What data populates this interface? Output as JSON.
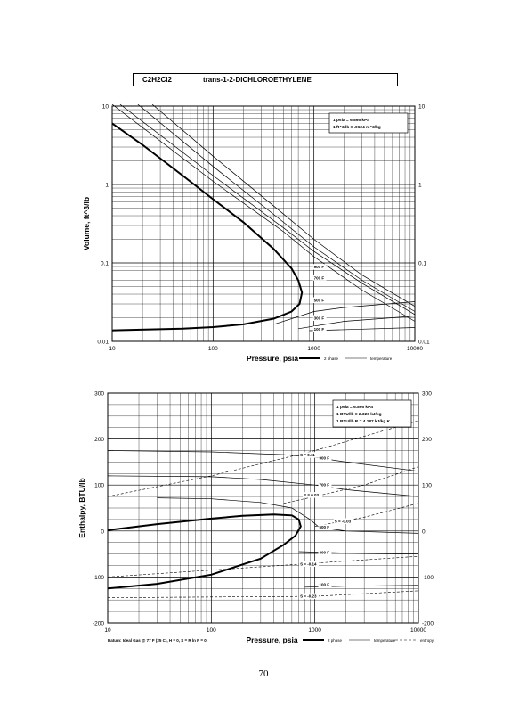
{
  "header": {
    "formula": "C2H2Cl2",
    "compound_name": "trans-1-2-DICHLOROETHYLENE"
  },
  "page_number": "70",
  "chart_data": [
    {
      "type": "line",
      "xscale": "log",
      "yscale": "log",
      "xlim": [
        10,
        10000
      ],
      "ylim": [
        0.01,
        10
      ],
      "xlabel": "Pressure,  psia",
      "ylabel": "Volume, ft^3/lb",
      "x_ticks": [
        "10",
        "100",
        "1000",
        "10000"
      ],
      "y_ticks": [
        "0.01",
        "0.1",
        "1",
        "10"
      ],
      "grid": true,
      "conversion_box": [
        "1 psia  =  6.895 kPa",
        "1 ft^3/lb  =  .0624 m^3/kg"
      ],
      "legend": {
        "placement": "bottom-right",
        "entries": [
          "2 phase",
          "temperature"
        ]
      },
      "isotherm_labels": [
        {
          "label": "900 F",
          "x": 1000,
          "y": 0.085
        },
        {
          "label": "700 F",
          "x": 1000,
          "y": 0.062
        },
        {
          "label": "500 F",
          "x": 1000,
          "y": 0.032
        },
        {
          "label": "300 F",
          "x": 1000,
          "y": 0.019
        },
        {
          "label": "100 F",
          "x": 1000,
          "y": 0.0137
        }
      ],
      "two_phase": [
        {
          "x": 10,
          "y": 6
        },
        {
          "x": 20,
          "y": 3.2
        },
        {
          "x": 50,
          "y": 1.3
        },
        {
          "x": 100,
          "y": 0.65
        },
        {
          "x": 200,
          "y": 0.33
        },
        {
          "x": 400,
          "y": 0.15
        },
        {
          "x": 600,
          "y": 0.085
        },
        {
          "x": 700,
          "y": 0.06
        },
        {
          "x": 760,
          "y": 0.042
        },
        {
          "x": 720,
          "y": 0.03
        },
        {
          "x": 600,
          "y": 0.024
        },
        {
          "x": 400,
          "y": 0.0195
        },
        {
          "x": 200,
          "y": 0.0165
        },
        {
          "x": 100,
          "y": 0.0152
        },
        {
          "x": 50,
          "y": 0.0145
        },
        {
          "x": 10,
          "y": 0.0138
        }
      ],
      "isotherms": [
        {
          "points": [
            {
              "x": 10,
              "y": 10.5
            },
            {
              "x": 100,
              "y": 1.1
            },
            {
              "x": 500,
              "y": 0.25
            },
            {
              "x": 1000,
              "y": 0.12
            },
            {
              "x": 3000,
              "y": 0.045
            },
            {
              "x": 10000,
              "y": 0.018
            }
          ]
        },
        {
          "points": [
            {
              "x": 12,
              "y": 10.5
            },
            {
              "x": 100,
              "y": 1.3
            },
            {
              "x": 500,
              "y": 0.28
            },
            {
              "x": 1000,
              "y": 0.14
            },
            {
              "x": 3000,
              "y": 0.055
            },
            {
              "x": 10000,
              "y": 0.022
            }
          ]
        },
        {
          "points": [
            {
              "x": 18,
              "y": 10.5
            },
            {
              "x": 100,
              "y": 1.7
            },
            {
              "x": 500,
              "y": 0.33
            },
            {
              "x": 1000,
              "y": 0.16
            },
            {
              "x": 3000,
              "y": 0.06
            },
            {
              "x": 10000,
              "y": 0.024
            }
          ]
        },
        {
          "points": [
            {
              "x": 25,
              "y": 10.5
            },
            {
              "x": 100,
              "y": 2.3
            },
            {
              "x": 500,
              "y": 0.42
            },
            {
              "x": 1000,
              "y": 0.2
            },
            {
              "x": 3000,
              "y": 0.07
            },
            {
              "x": 10000,
              "y": 0.028
            }
          ]
        },
        {
          "points": [
            {
              "x": 400,
              "y": 0.0165
            },
            {
              "x": 1000,
              "y": 0.024
            },
            {
              "x": 2000,
              "y": 0.027
            },
            {
              "x": 10000,
              "y": 0.032
            }
          ]
        },
        {
          "points": [
            {
              "x": 700,
              "y": 0.0145
            },
            {
              "x": 2000,
              "y": 0.018
            },
            {
              "x": 10000,
              "y": 0.021
            }
          ]
        },
        {
          "points": [
            {
              "x": 900,
              "y": 0.0137
            },
            {
              "x": 3000,
              "y": 0.0143
            },
            {
              "x": 10000,
              "y": 0.015
            }
          ]
        }
      ]
    },
    {
      "type": "line",
      "xscale": "log",
      "yscale": "linear",
      "xlim": [
        10,
        10000
      ],
      "ylim": [
        -200,
        300
      ],
      "xlabel": "Pressure,  psia",
      "ylabel": "Enthalpy, BTU/lb",
      "x_ticks": [
        "10",
        "100",
        "1000",
        "10000"
      ],
      "y_ticks": [
        "-200",
        "-100",
        "0",
        "100",
        "200",
        "300"
      ],
      "grid": true,
      "conversion_box": [
        "1 psia  =  6.895 kPa",
        "1 BTU/lb  =  2.326 kJ/kg",
        "1 BTU/lb R  =  4.187 kJ/kg K"
      ],
      "legend": {
        "placement": "bottom-right",
        "entries": [
          "2 phase",
          "temperature",
          "entropy"
        ]
      },
      "datum_note": "Datum: Ideal Gas @ 77 F (25 C),  H = 0,  S = R ln P = 0",
      "isotherm_labels": [
        {
          "label": "900 F",
          "x": 1100,
          "y": 156
        },
        {
          "label": "700 F",
          "x": 1100,
          "y": 97
        },
        {
          "label": "500 F",
          "x": 1100,
          "y": 5
        },
        {
          "label": "300 F",
          "x": 1100,
          "y": -50
        },
        {
          "label": "100 F",
          "x": 1100,
          "y": -120
        }
      ],
      "entropy_labels": [
        {
          "label": "S = 0.11",
          "x": 720,
          "y": 162
        },
        {
          "label": "S = 0.03",
          "x": 780,
          "y": 75
        },
        {
          "label": "S = -0.03",
          "x": 1550,
          "y": 18
        },
        {
          "label": "S = -0.14",
          "x": 720,
          "y": -75
        },
        {
          "label": "S = -0.23",
          "x": 720,
          "y": -145
        }
      ],
      "two_phase": [
        {
          "x": 10,
          "y": 2
        },
        {
          "x": 30,
          "y": 15
        },
        {
          "x": 100,
          "y": 27
        },
        {
          "x": 200,
          "y": 33
        },
        {
          "x": 400,
          "y": 36
        },
        {
          "x": 600,
          "y": 34
        },
        {
          "x": 700,
          "y": 25
        },
        {
          "x": 730,
          "y": 10
        },
        {
          "x": 650,
          "y": -10
        },
        {
          "x": 500,
          "y": -30
        },
        {
          "x": 300,
          "y": -60
        },
        {
          "x": 100,
          "y": -95
        },
        {
          "x": 30,
          "y": -115
        },
        {
          "x": 10,
          "y": -125
        }
      ],
      "isotherms": [
        {
          "points": [
            {
              "x": 10,
              "y": 175
            },
            {
              "x": 100,
              "y": 172
            },
            {
              "x": 500,
              "y": 166
            },
            {
              "x": 1000,
              "y": 160
            },
            {
              "x": 2000,
              "y": 150
            },
            {
              "x": 10000,
              "y": 130
            }
          ]
        },
        {
          "points": [
            {
              "x": 10,
              "y": 120
            },
            {
              "x": 100,
              "y": 118
            },
            {
              "x": 300,
              "y": 112
            },
            {
              "x": 1000,
              "y": 100
            },
            {
              "x": 2000,
              "y": 90
            },
            {
              "x": 10000,
              "y": 75
            }
          ]
        },
        {
          "points": [
            {
              "x": 30,
              "y": 72
            },
            {
              "x": 100,
              "y": 70
            },
            {
              "x": 300,
              "y": 62
            },
            {
              "x": 600,
              "y": 50
            },
            {
              "x": 900,
              "y": 25
            },
            {
              "x": 1100,
              "y": 8
            },
            {
              "x": 2000,
              "y": 0
            },
            {
              "x": 10000,
              "y": -5
            }
          ]
        },
        {
          "points": [
            {
              "x": 700,
              "y": -45
            },
            {
              "x": 2000,
              "y": -48
            },
            {
              "x": 10000,
              "y": -50
            }
          ]
        },
        {
          "points": [
            {
              "x": 800,
              "y": -122
            },
            {
              "x": 2000,
              "y": -120
            },
            {
              "x": 10000,
              "y": -118
            }
          ]
        }
      ],
      "entropy_lines": [
        {
          "points": [
            {
              "x": 10,
              "y": 75
            },
            {
              "x": 100,
              "y": 120
            },
            {
              "x": 1000,
              "y": 175
            },
            {
              "x": 10000,
              "y": 240
            }
          ]
        },
        {
          "points": [
            {
              "x": 500,
              "y": 60
            },
            {
              "x": 1000,
              "y": 75
            },
            {
              "x": 3000,
              "y": 100
            },
            {
              "x": 10000,
              "y": 140
            }
          ]
        },
        {
          "points": [
            {
              "x": 1000,
              "y": 10
            },
            {
              "x": 3000,
              "y": 30
            },
            {
              "x": 10000,
              "y": 60
            }
          ]
        },
        {
          "points": [
            {
              "x": 10,
              "y": -100
            },
            {
              "x": 1000,
              "y": -70
            },
            {
              "x": 10000,
              "y": -55
            }
          ]
        },
        {
          "points": [
            {
              "x": 10,
              "y": -145
            },
            {
              "x": 1000,
              "y": -142
            },
            {
              "x": 10000,
              "y": -130
            }
          ]
        }
      ]
    }
  ]
}
